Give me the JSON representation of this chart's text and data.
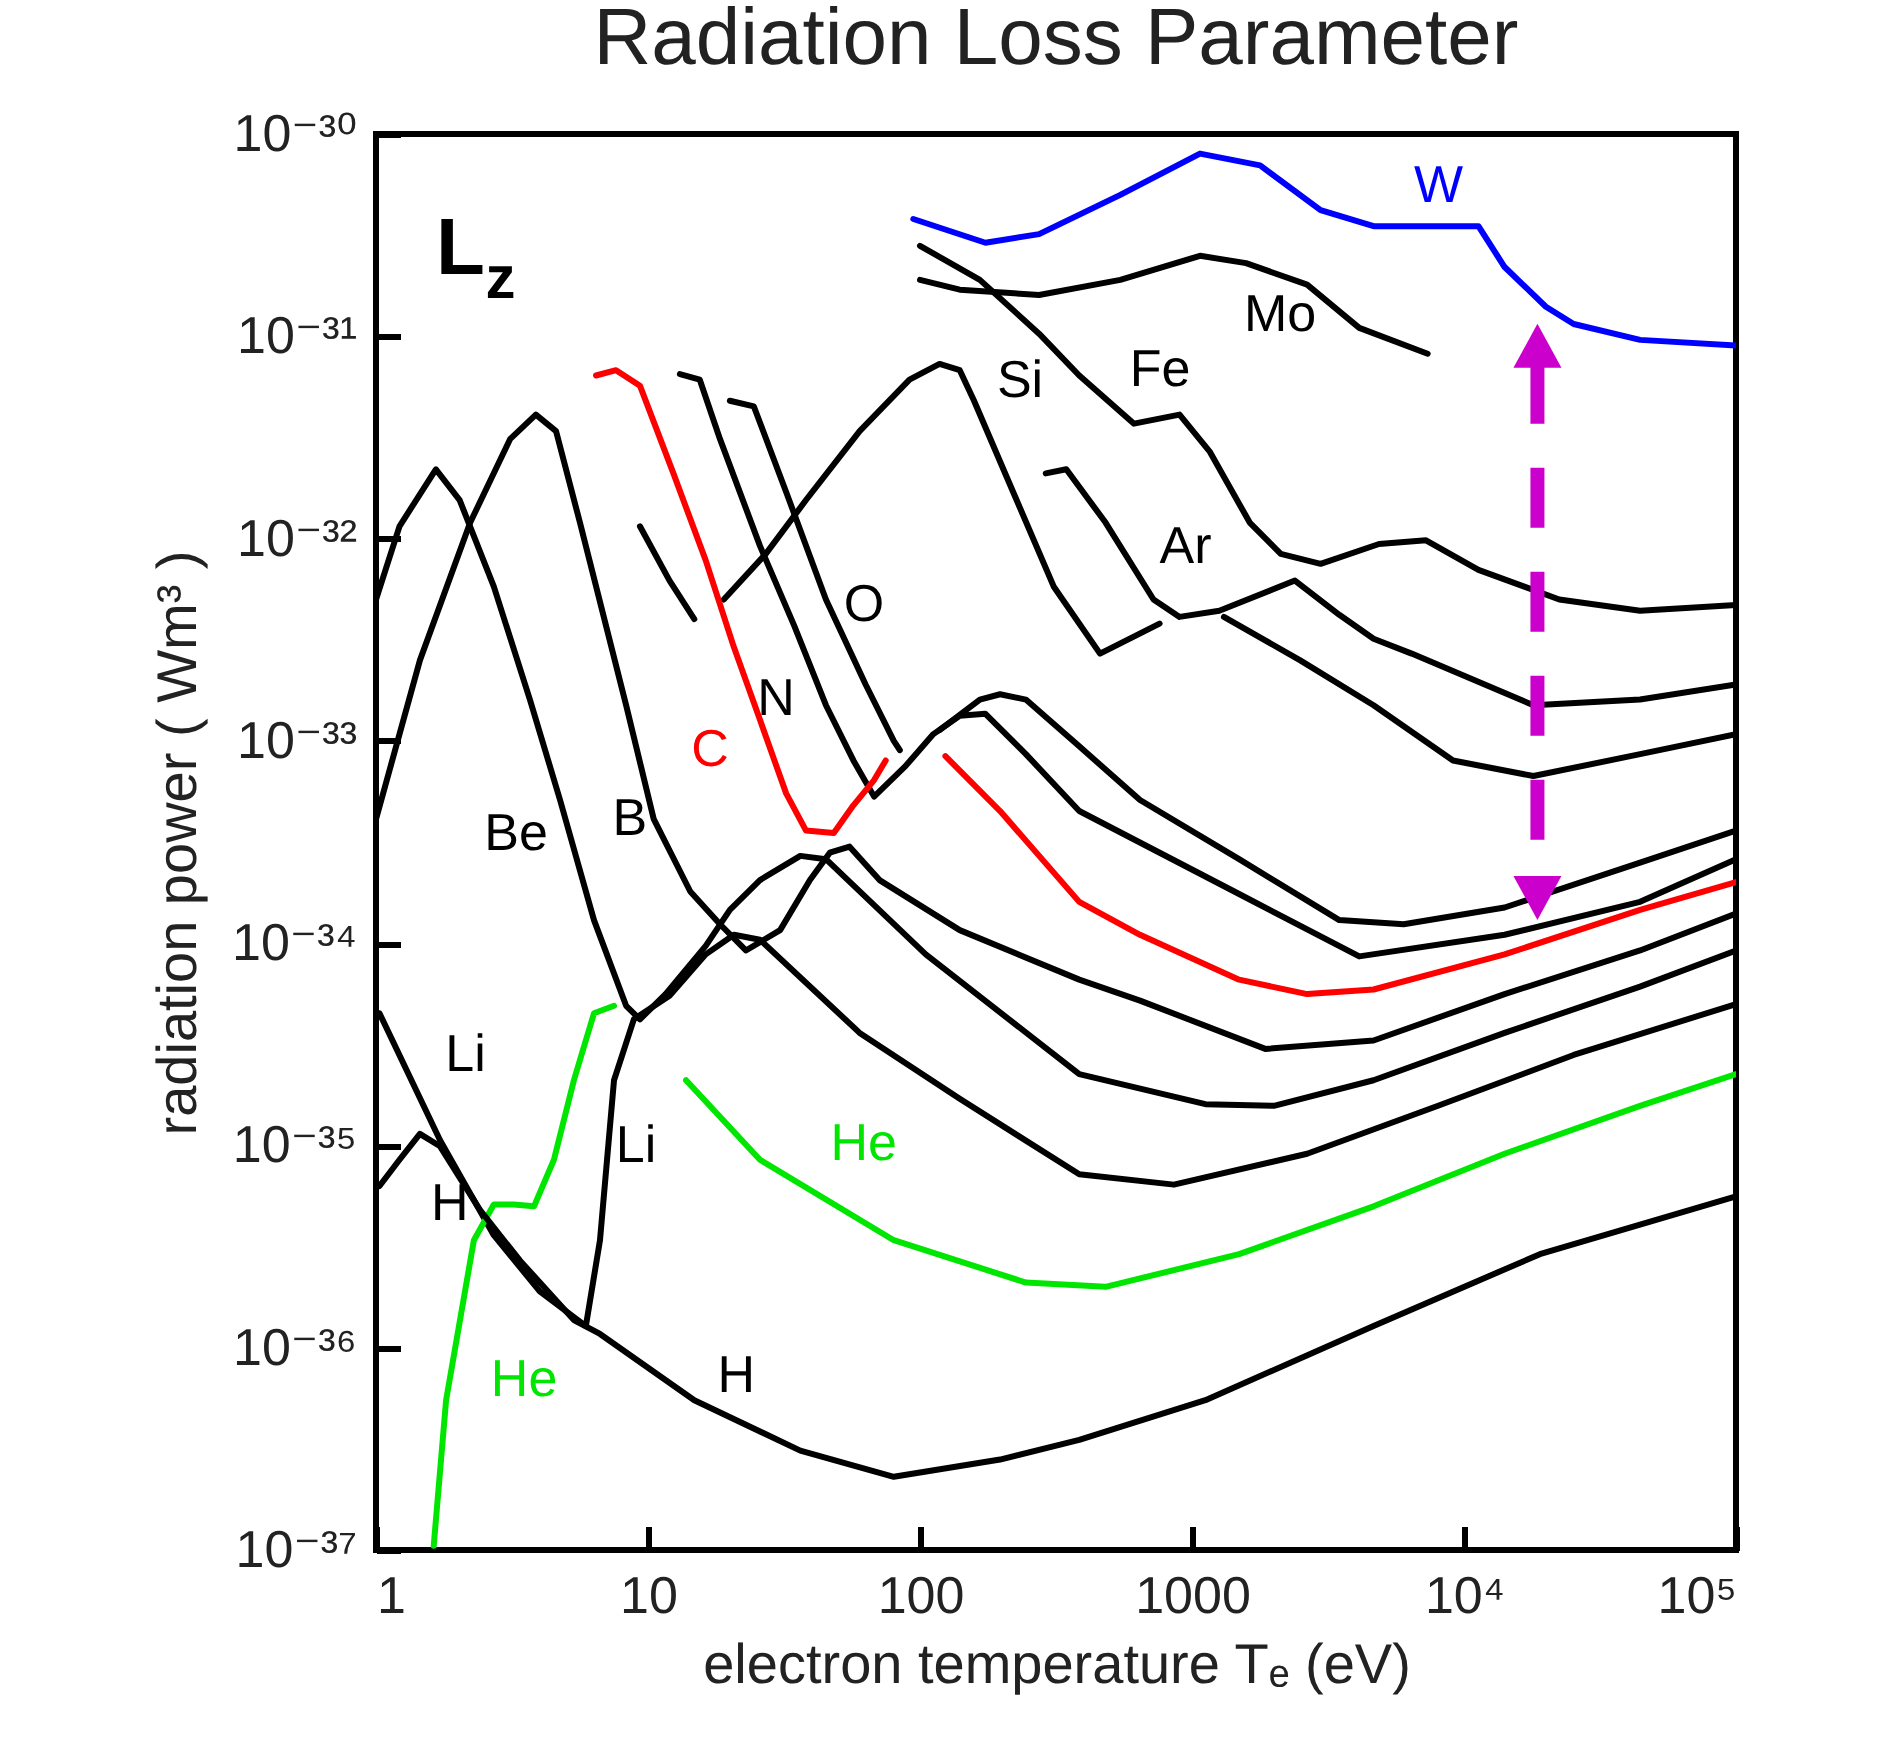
{
  "chart_data": {
    "type": "line",
    "title": "Radiation Loss Parameter",
    "xlabel": "electron temperature Tₑ (eV)",
    "ylabel": "radiation power ( Wm³ )",
    "log": "xy",
    "xlim": [
      1,
      100000
    ],
    "ylim": [
      1e-37,
      1e-30
    ],
    "xticks": [
      1,
      10,
      100,
      1000,
      {
        "value": 10000,
        "label": "10⁴"
      },
      {
        "value": 100000,
        "label": "10⁵"
      }
    ],
    "yticks": [
      {
        "value": 1e-37,
        "label": "10⁻³⁷"
      },
      {
        "value": 1e-36,
        "label": "10⁻³⁶"
      },
      {
        "value": 1e-35,
        "label": "10⁻³⁵"
      },
      {
        "value": 1e-34,
        "label": "10⁻³⁴"
      },
      {
        "value": 1e-33,
        "label": "10⁻³³"
      },
      {
        "value": 1e-32,
        "label": "10⁻³²"
      },
      {
        "value": 1e-31,
        "label": "10⁻³¹"
      },
      {
        "value": 1e-30,
        "label": "10⁻³⁰"
      }
    ],
    "series": [
      {
        "name": "W",
        "color": "#0000ff",
        "x": [
          94.5,
          174,
          274,
          545,
          1070,
          1780,
          2970,
          4650,
          11300,
          14100,
          20000,
          25300,
          44400,
          100000
        ],
        "values": [
          3.8e-31,
          2.9e-31,
          3.2e-31,
          5e-31,
          8e-31,
          7e-31,
          4.2e-31,
          3.5e-31,
          3.5e-31,
          2.2e-31,
          1.4e-31,
          1.15e-31,
          9.6e-32,
          9e-32
        ]
      },
      {
        "name": "Mo",
        "color": "#000000",
        "x": [
          100,
          140,
          274,
          545,
          1070,
          1580,
          2650,
          4120,
          7350
        ],
        "values": [
          1.9e-31,
          1.7e-31,
          1.6e-31,
          1.9e-31,
          2.5e-31,
          2.3e-31,
          1.8e-31,
          1.1e-31,
          8.2e-32
        ]
      },
      {
        "name": "Fe",
        "color": "#000000",
        "x": [
          100,
          166,
          274,
          385,
          612,
          900,
          1160,
          1630,
          2120,
          2970,
          4870,
          7250,
          11300,
          22400,
          44400,
          100000
        ],
        "values": [
          2.8e-31,
          1.9e-31,
          1.03e-31,
          6.4e-32,
          3.7e-32,
          4.1e-32,
          2.7e-32,
          1.2e-32,
          8.4e-33,
          7.5e-33,
          9.4e-33,
          9.8e-33,
          7e-33,
          5e-33,
          4.4e-33,
          4.7e-33
        ]
      },
      {
        "name": "Ar",
        "color": "#000000",
        "x": [
          290,
          345,
          481,
          722,
          900,
          1260,
          2390,
          3480,
          4650,
          6420,
          18000,
          44400,
          100000
        ],
        "values": [
          2.1e-32,
          2.2e-32,
          1.2e-32,
          5e-33,
          4.1e-33,
          4.4e-33,
          6.2e-33,
          4.2e-33,
          3.2e-33,
          2.7e-33,
          1.5e-33,
          1.6e-33,
          1.9e-33
        ]
      },
      {
        "name": "Si",
        "color": "#000000",
        "x": [
          9.34,
          12.0,
          14.8,
          16.5,
          19.0,
          27.1,
          38.1,
          60.0,
          91.5,
          118,
          140,
          158,
          220,
          310,
          459,
          760,
          1000,
          1310,
          2500,
          4650,
          9110,
          18000,
          44400,
          100000
        ],
        "values": [
          1.15e-32,
          6.2e-33,
          4e-33,
          null,
          5e-33,
          8.4e-33,
          1.55e-32,
          3.4e-32,
          6.1e-32,
          7.3e-32,
          6.8e-32,
          4.8e-32,
          1.7e-32,
          5.8e-33,
          2.7e-33,
          3.8e-33,
          null,
          4.1e-33,
          2.5e-33,
          1.5e-33,
          8e-34,
          6.7e-34,
          8.6e-34,
          1.08e-33
        ]
      },
      {
        "name": "O",
        "color": "#000000",
        "x": [
          20.0,
          24.5,
          32.2,
          45.1,
          63.1,
          80.1,
          84.3,
          100,
          118,
          166,
          197,
          245,
          385,
          644,
          1490,
          3480,
          6000,
          14100,
          44400,
          100000
        ],
        "values": [
          4.8e-32,
          4.5e-32,
          1.7e-32,
          5e-33,
          1.9e-33,
          1e-33,
          9e-34,
          null,
          1.13e-33,
          1.6e-33,
          1.7e-33,
          1.6e-33,
          9.4e-34,
          5.1e-34,
          2.6e-34,
          1.3e-34,
          1.24e-34,
          1.5e-34,
          2.5e-34,
          3.6e-34
        ]
      },
      {
        "name": "N",
        "color": "#000000",
        "x": [
          13.1,
          15.5,
          18.4,
          25.8,
          34.5,
          45.1,
          56.9,
          67.8,
          88.4,
          112,
          140,
          174,
          245,
          385,
          1490,
          4120,
          14100,
          44400,
          100000
        ],
        "values": [
          6.5e-32,
          6.1e-32,
          3.1e-32,
          9.2e-33,
          3.7e-33,
          1.5e-33,
          8e-34,
          5.3e-34,
          7.5e-34,
          1.08e-33,
          1.33e-33,
          1.36e-33,
          8.6e-34,
          4.5e-34,
          1.75e-34,
          8.6e-35,
          1.1e-34,
          1.6e-34,
          2.6e-34
        ]
      },
      {
        "name": "C",
        "color": "#ff0000",
        "x": [
          6.44,
          7.63,
          9.34,
          12.4,
          16.3,
          20.7,
          25.8,
          32.2,
          38.1,
          48.2,
          56.9,
          67.8,
          74.8,
          100,
          124,
          197,
          385,
          644,
          1490,
          2650,
          4650,
          14100,
          44400,
          100000
        ],
        "values": [
          6.4e-32,
          6.8e-32,
          5.7e-32,
          2.1e-32,
          7.8e-33,
          2.9e-33,
          1.27e-33,
          5.5e-34,
          3.6e-34,
          3.5e-34,
          4.8e-34,
          6.4e-34,
          8e-34,
          null,
          8.4e-34,
          4.5e-34,
          1.6e-34,
          1.1e-34,
          6.6e-35,
          5.6e-35,
          5.9e-35,
          8.8e-35,
          1.46e-34,
          2e-34
        ]
      },
      {
        "name": "B",
        "color": "#000000",
        "x": [
          1,
          1.45,
          2.22,
          3.11,
          3.87,
          4.59,
          5.62,
          8.31,
          10.5,
          14.3,
          18.4,
          22.9,
          30.6,
          39.4,
          46.6,
          55.1,
          71.0,
          140,
          385,
          644,
          1860,
          4650,
          14100,
          44400,
          100000
        ],
        "values": [
          4.1e-34,
          2.5e-33,
          1.2e-32,
          3.1e-32,
          4.1e-32,
          3.4e-32,
          1.2e-32,
          1.5e-33,
          4.1e-34,
          1.8e-34,
          1.24e-34,
          9.2e-35,
          1.16e-34,
          2.05e-34,
          2.8e-34,
          3e-34,
          2.05e-34,
          1.16e-34,
          6.6e-35,
          5.2e-35,
          3e-35,
          3.3e-35,
          5.6e-35,
          9.2e-35,
          1.4e-34
        ]
      },
      {
        "name": "Be",
        "color": "#000000",
        "x": [
          1,
          1.22,
          1.66,
          2.03,
          2.71,
          3.68,
          4.75,
          6.33,
          8.31,
          9.34,
          11.6,
          16.3,
          20.0,
          25.8,
          36.3,
          45.1,
          105,
          385,
          1120,
          2000,
          4650,
          14100,
          44400,
          100000
        ],
        "values": [
          5e-33,
          1.15e-32,
          2.2e-32,
          1.55e-32,
          5.8e-33,
          1.6e-33,
          5.1e-34,
          1.3e-34,
          4.9e-35,
          4.2e-35,
          5.6e-35,
          9.7e-35,
          1.46e-34,
          2.05e-34,
          2.7e-34,
          2.6e-34,
          8.8e-35,
          2.25e-35,
          1.6e-35,
          1.57e-35,
          2.1e-35,
          3.6e-35,
          6.1e-35,
          9.2e-35
        ]
      },
      {
        "name": "Li",
        "color": "#000000",
        "x": [
          1.03,
          1.72,
          2.71,
          4.0,
          5.91,
          6.66,
          7.5,
          8.87,
          12.0,
          16.3,
          20.7,
          25.8,
          60.0,
          140,
          385,
          858,
          2650,
          8030,
          25300,
          100000
        ],
        "values": [
          4.5e-35,
          1.06e-35,
          3.6e-36,
          1.9e-36,
          1.28e-36,
          3.4e-36,
          2.1e-35,
          4.2e-35,
          5.5e-35,
          8.8e-35,
          1.1e-34,
          1.04e-34,
          3.6e-35,
          1.7e-35,
          7.2e-36,
          6.4e-36,
          9.1e-36,
          1.57e-35,
          2.8e-35,
          5e-35
        ]
      },
      {
        "name": "He",
        "color": "#00e600",
        "x": [
          1.63,
          1.81,
          2.29,
          2.71,
          3.21,
          3.81,
          4.51,
          5.34,
          6.33,
          7.5,
          10,
          13.8,
          25.8,
          80.1,
          245,
          481,
          1490,
          4650,
          14100,
          44400,
          100000
        ],
        "values": [
          1.05e-37,
          5.5e-37,
          3.4e-36,
          5.1e-36,
          5.1e-36,
          5e-36,
          8.5e-36,
          2.1e-35,
          4.5e-35,
          4.9e-35,
          null,
          2.1e-35,
          8.5e-36,
          3.4e-36,
          2.1e-36,
          2e-36,
          2.9e-36,
          5e-36,
          9.1e-36,
          1.57e-35,
          2.25e-35
        ]
      },
      {
        "name": "H",
        "color": "#000000",
        "x": [
          1.03,
          1.22,
          1.45,
          1.72,
          2.41,
          3.38,
          5.34,
          6.66,
          14.8,
          36.3,
          80.1,
          197,
          385,
          1120,
          4650,
          19000,
          100000
        ],
        "values": [
          6.3e-36,
          8.5e-36,
          1.14e-35,
          9.9e-36,
          4.8e-36,
          2.7e-36,
          1.37e-36,
          1.17e-36,
          5.5e-37,
          3.1e-37,
          2.3e-37,
          2.8e-37,
          3.5e-37,
          5.5e-37,
          1.28e-36,
          2.9e-36,
          5.6e-36
        ]
      }
    ],
    "annotations": [
      "L$_{z}$"
    ]
  }
}
